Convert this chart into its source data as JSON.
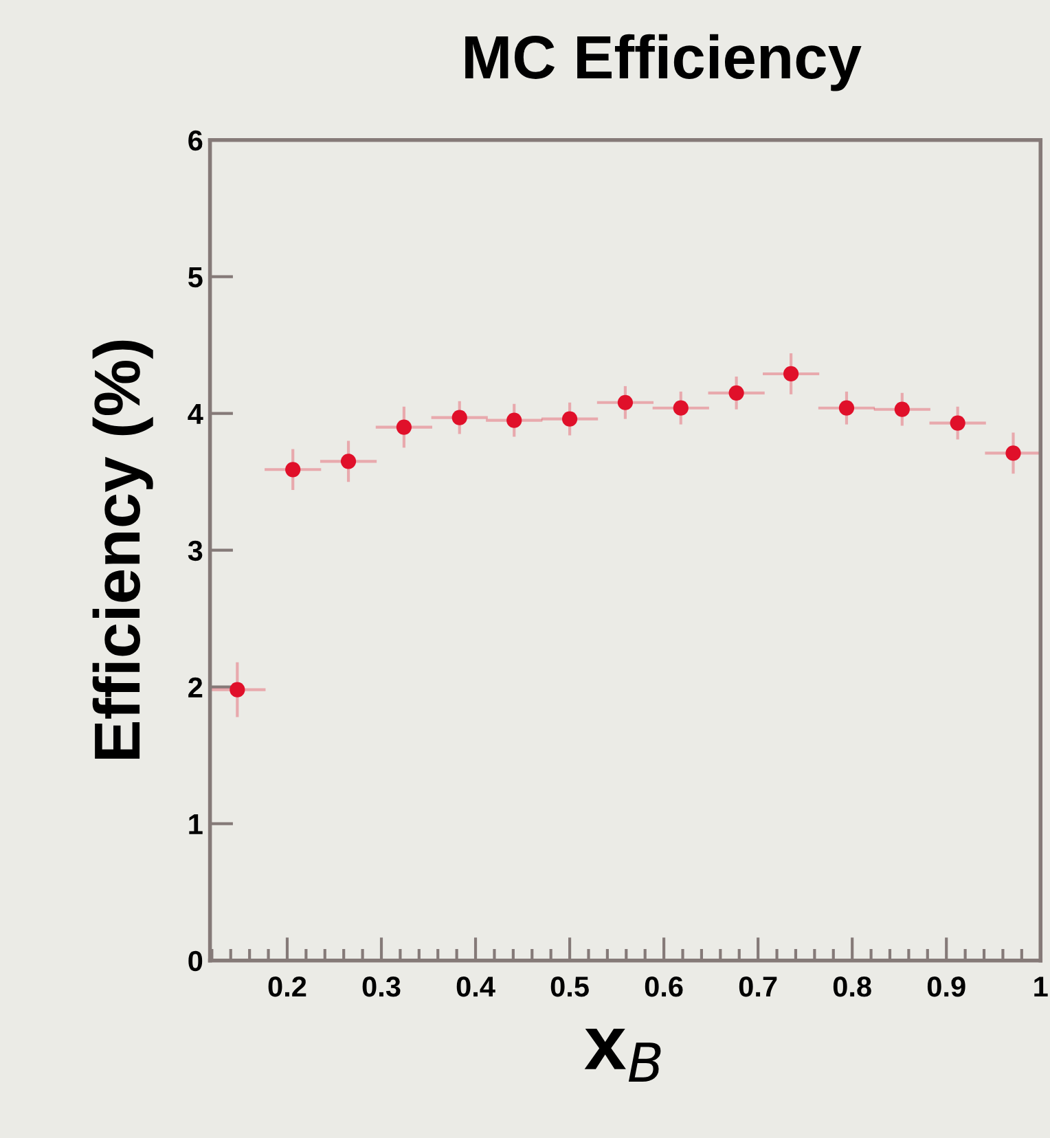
{
  "chart_data": {
    "type": "scatter",
    "title": "MC Efficiency",
    "xlabel": "x$_{B}$",
    "ylabel": "Efficiency (%)",
    "x": [
      0.147,
      0.206,
      0.265,
      0.324,
      0.383,
      0.441,
      0.5,
      0.559,
      0.618,
      0.677,
      0.735,
      0.794,
      0.853,
      0.912,
      0.971
    ],
    "series": [
      {
        "color": "#e0102a",
        "values": [
          1.98,
          3.59,
          3.65,
          3.9,
          3.97,
          3.95,
          3.96,
          4.08,
          4.04,
          4.15,
          4.29,
          4.04,
          4.03,
          3.93,
          3.71
        ],
        "errors": [
          0.2,
          0.15,
          0.15,
          0.15,
          0.12,
          0.12,
          0.12,
          0.12,
          0.12,
          0.12,
          0.15,
          0.12,
          0.12,
          0.12,
          0.15
        ],
        "xerrors": [
          0.03,
          0.03,
          0.03,
          0.03,
          0.03,
          0.03,
          0.03,
          0.03,
          0.03,
          0.03,
          0.03,
          0.03,
          0.03,
          0.03,
          0.03
        ]
      }
    ],
    "xlim": [
      0.118,
      1.0
    ],
    "ylim": [
      0,
      6
    ],
    "xticks": [
      0.2,
      0.3,
      0.4,
      0.5,
      0.6,
      0.7,
      0.8,
      0.9,
      1
    ],
    "yticks": [
      0,
      1,
      2,
      3,
      4,
      5,
      6
    ],
    "marker": "circle",
    "grid": false,
    "legend": false
  }
}
